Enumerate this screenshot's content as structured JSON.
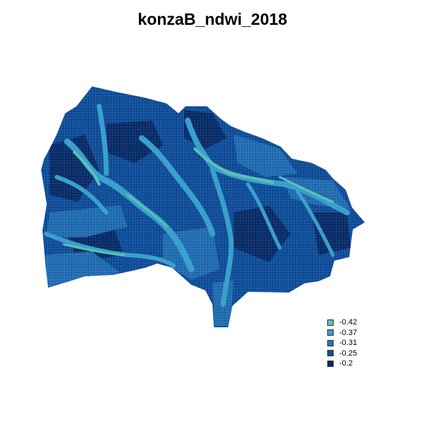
{
  "title": "konzaB_ndwi_2018",
  "legend": {
    "items": [
      {
        "label": "-0.42",
        "color": "#5cc1b4"
      },
      {
        "label": "-0.37",
        "color": "#3aa0cc"
      },
      {
        "label": "-0.31",
        "color": "#2775b8"
      },
      {
        "label": "-0.25",
        "color": "#13509c"
      },
      {
        "label": "-0.2",
        "color": "#0b2a63"
      }
    ]
  },
  "map": {
    "layer": "NDWI raster",
    "value_range": [
      -0.42,
      -0.2
    ]
  }
}
